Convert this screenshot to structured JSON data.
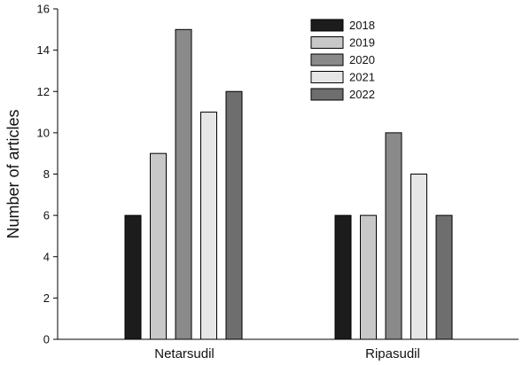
{
  "chart_data": {
    "type": "bar",
    "title": "",
    "xlabel": "",
    "ylabel": "Number of articles",
    "ylim": [
      0,
      16
    ],
    "yticks": [
      0,
      2,
      4,
      6,
      8,
      10,
      12,
      14,
      16
    ],
    "grid": false,
    "legend_position": "top-right",
    "categories": [
      "Netarsudil",
      "Ripasudil"
    ],
    "series": [
      {
        "name": "2018",
        "color": "#1c1c1c",
        "values": [
          6,
          6
        ]
      },
      {
        "name": "2019",
        "color": "#c8c8c8",
        "values": [
          9,
          6
        ]
      },
      {
        "name": "2020",
        "color": "#8a8a8a",
        "values": [
          15,
          10
        ]
      },
      {
        "name": "2021",
        "color": "#e6e6e6",
        "values": [
          11,
          8
        ]
      },
      {
        "name": "2022",
        "color": "#6e6e6e",
        "values": [
          12,
          6
        ]
      }
    ]
  }
}
